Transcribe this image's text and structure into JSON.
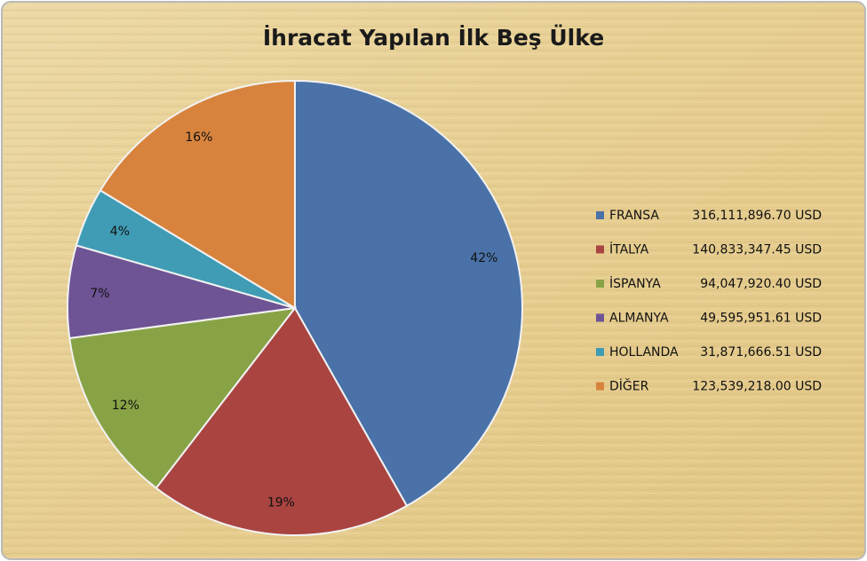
{
  "chart_data": {
    "type": "pie",
    "title": "İhracat Yapılan İlk Beş Ülke",
    "categories": [
      "FRANSA",
      "İTALYA",
      "İSPANYA",
      "ALMANYA",
      "HOLLANDA",
      "DİĞER"
    ],
    "values": [
      42,
      19,
      12,
      7,
      4,
      16
    ],
    "value_labels": [
      "42%",
      "19%",
      "12%",
      "7%",
      "4%",
      "16%"
    ],
    "amounts": [
      316111896.7,
      140833347.45,
      94047920.4,
      49595951.61,
      31871666.51,
      123539218.0
    ],
    "amount_labels": [
      "316,111,896.70 USD",
      "140,833,347.45 USD",
      "94,047,920.40 USD",
      "49,595,951.61 USD",
      "31,871,666.51 USD",
      "123,539,218.00 USD"
    ],
    "colors": [
      "#4a72a8",
      "#a94441",
      "#88a346",
      "#6e5494",
      "#3f9cb4",
      "#d8833d"
    ],
    "legend": "right"
  }
}
